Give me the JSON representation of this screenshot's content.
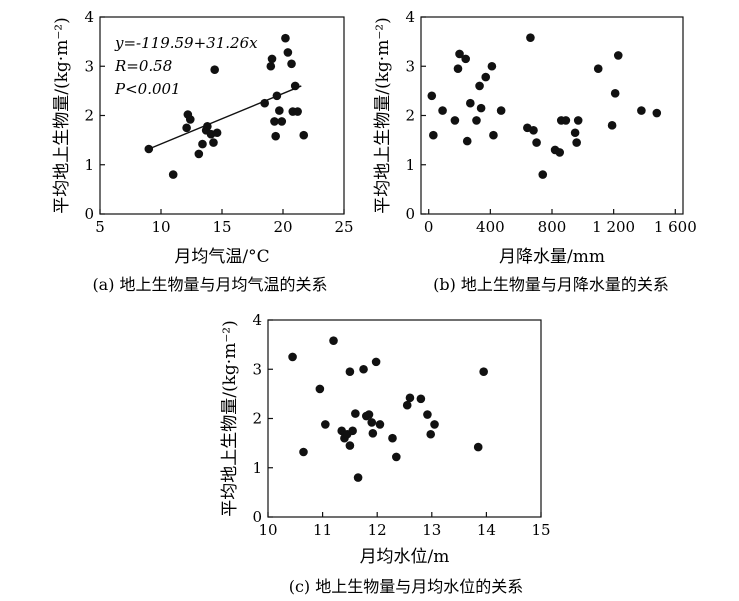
{
  "chart_data": [
    {
      "type": "scatter",
      "caption": "(a) 地上生物量与月均气温的关系",
      "xlabel": "月均气温/°C",
      "ylabel": "平均地上生物量/(kg·m⁻²)",
      "xlim": [
        5,
        25
      ],
      "ylim": [
        0,
        4
      ],
      "xticks": [
        "5",
        "10",
        "15",
        "20",
        "25"
      ],
      "yticks": [
        "0",
        "1",
        "2",
        "3",
        "4"
      ],
      "annotations": [
        "y=-119.59+31.26x",
        "R=0.58",
        "P<0.001"
      ],
      "trendline": {
        "x1": 9,
        "y1": 1.32,
        "x2": 21.5,
        "y2": 2.6
      },
      "points": [
        [
          9,
          1.32
        ],
        [
          11,
          0.8
        ],
        [
          12.1,
          1.75
        ],
        [
          12.2,
          2.02
        ],
        [
          12.4,
          1.92
        ],
        [
          13.1,
          1.22
        ],
        [
          13.4,
          1.42
        ],
        [
          13.7,
          1.7
        ],
        [
          13.8,
          1.78
        ],
        [
          14.1,
          1.62
        ],
        [
          14.3,
          1.45
        ],
        [
          14.6,
          1.65
        ],
        [
          14.4,
          2.93
        ],
        [
          18.5,
          2.25
        ],
        [
          19.0,
          3.0
        ],
        [
          19.1,
          3.15
        ],
        [
          19.3,
          1.88
        ],
        [
          19.4,
          1.58
        ],
        [
          19.5,
          2.4
        ],
        [
          19.7,
          2.1
        ],
        [
          19.9,
          1.88
        ],
        [
          20.2,
          3.57
        ],
        [
          20.4,
          3.28
        ],
        [
          20.7,
          3.05
        ],
        [
          20.8,
          2.08
        ],
        [
          21.0,
          2.6
        ],
        [
          21.2,
          2.08
        ],
        [
          21.7,
          1.6
        ]
      ]
    },
    {
      "type": "scatter",
      "caption": "(b) 地上生物量与月降水量的关系",
      "xlabel": "月降水量/mm",
      "ylabel": "平均地上生物量/(kg·m⁻²)",
      "xlim": [
        -50,
        1650
      ],
      "ylim": [
        0,
        4
      ],
      "xticks": [
        "0",
        "400",
        "800",
        "1 200",
        "1 600"
      ],
      "yticks": [
        "0",
        "1",
        "2",
        "3",
        "4"
      ],
      "points": [
        [
          20,
          2.4
        ],
        [
          30,
          1.6
        ],
        [
          90,
          2.1
        ],
        [
          170,
          1.9
        ],
        [
          190,
          2.95
        ],
        [
          200,
          3.25
        ],
        [
          240,
          3.15
        ],
        [
          250,
          1.48
        ],
        [
          270,
          2.25
        ],
        [
          310,
          1.9
        ],
        [
          330,
          2.6
        ],
        [
          340,
          2.15
        ],
        [
          370,
          2.78
        ],
        [
          410,
          3.0
        ],
        [
          420,
          1.6
        ],
        [
          470,
          2.1
        ],
        [
          640,
          1.75
        ],
        [
          660,
          3.58
        ],
        [
          680,
          1.7
        ],
        [
          700,
          1.45
        ],
        [
          740,
          0.8
        ],
        [
          820,
          1.3
        ],
        [
          850,
          1.25
        ],
        [
          860,
          1.9
        ],
        [
          890,
          1.9
        ],
        [
          950,
          1.65
        ],
        [
          960,
          1.45
        ],
        [
          970,
          1.9
        ],
        [
          1100,
          2.95
        ],
        [
          1190,
          1.8
        ],
        [
          1210,
          2.45
        ],
        [
          1230,
          3.22
        ],
        [
          1380,
          2.1
        ],
        [
          1480,
          2.05
        ]
      ]
    },
    {
      "type": "scatter",
      "caption": "(c) 地上生物量与月均水位的关系",
      "xlabel": "月均水位/m",
      "ylabel": "平均地上生物量/(kg·m⁻²)",
      "xlim": [
        10,
        15
      ],
      "ylim": [
        0,
        4
      ],
      "xticks": [
        "10",
        "11",
        "12",
        "13",
        "14",
        "15"
      ],
      "yticks": [
        "0",
        "1",
        "2",
        "3",
        "4"
      ],
      "points": [
        [
          10.45,
          3.25
        ],
        [
          10.65,
          1.32
        ],
        [
          10.95,
          2.6
        ],
        [
          11.05,
          1.88
        ],
        [
          11.2,
          3.58
        ],
        [
          11.35,
          1.75
        ],
        [
          11.4,
          1.6
        ],
        [
          11.45,
          1.68
        ],
        [
          11.5,
          1.45
        ],
        [
          11.5,
          2.95
        ],
        [
          11.55,
          1.75
        ],
        [
          11.6,
          2.1
        ],
        [
          11.65,
          0.8
        ],
        [
          11.75,
          3.0
        ],
        [
          11.8,
          2.05
        ],
        [
          11.85,
          2.08
        ],
        [
          11.9,
          1.92
        ],
        [
          11.92,
          1.7
        ],
        [
          11.98,
          3.15
        ],
        [
          12.05,
          1.88
        ],
        [
          12.28,
          1.6
        ],
        [
          12.35,
          1.22
        ],
        [
          12.55,
          2.27
        ],
        [
          12.6,
          2.42
        ],
        [
          12.8,
          2.4
        ],
        [
          12.92,
          2.08
        ],
        [
          12.98,
          1.68
        ],
        [
          13.05,
          1.88
        ],
        [
          13.85,
          1.42
        ],
        [
          13.95,
          2.95
        ]
      ]
    }
  ]
}
